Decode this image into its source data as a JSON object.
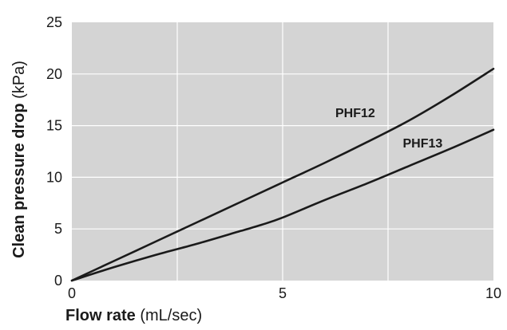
{
  "chart_data": {
    "type": "line",
    "xlabel_bold": "Flow rate",
    "xlabel_unit": " (mL/sec)",
    "ylabel_bold": "Clean pressure drop",
    "ylabel_unit": " (kPa)",
    "xlim": [
      0,
      10
    ],
    "ylim": [
      0,
      25
    ],
    "x_ticks": [
      0,
      5,
      10
    ],
    "y_ticks": [
      0,
      5,
      10,
      15,
      20,
      25
    ],
    "grid": true,
    "plot_bg": "#d4d4d4",
    "grid_color": "#ffffff",
    "line_color": "#1a1a1a",
    "series": [
      {
        "name": "PHF12",
        "label_at": [
          6.25,
          15.8
        ],
        "x": [
          0,
          1,
          2,
          3,
          4,
          5,
          6,
          7,
          8,
          9,
          10
        ],
        "y": [
          0,
          1.9,
          3.8,
          5.7,
          7.6,
          9.5,
          11.4,
          13.4,
          15.5,
          17.9,
          20.5
        ]
      },
      {
        "name": "PHF13",
        "label_at": [
          7.85,
          12.9
        ],
        "x": [
          0,
          1,
          2,
          3,
          4,
          4.5,
          5,
          6,
          7,
          8,
          9,
          10
        ],
        "y": [
          0,
          1.3,
          2.5,
          3.6,
          4.8,
          5.4,
          6.1,
          7.8,
          9.4,
          11.1,
          12.8,
          14.6
        ]
      }
    ]
  }
}
